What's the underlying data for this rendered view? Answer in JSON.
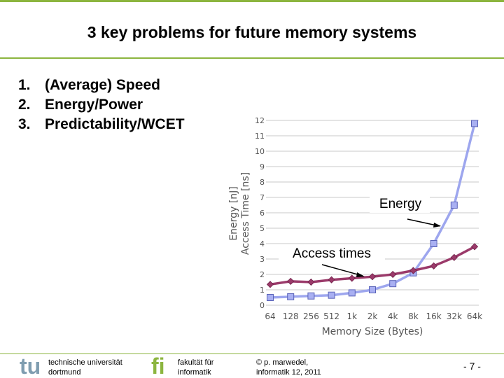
{
  "slide": {
    "title": "3 key problems for future memory systems",
    "items": [
      {
        "num": "1.",
        "text": "(Average) Speed"
      },
      {
        "num": "2.",
        "text": "Energy/Power"
      },
      {
        "num": "3.",
        "text": "Predictability/WCET"
      }
    ]
  },
  "chart_data": {
    "type": "line",
    "xlabel": "Memory Size (Bytes)",
    "ylabel_lines": [
      "Energy [nJ]",
      "Access Time [ns]"
    ],
    "categories": [
      "64",
      "128",
      "256",
      "512",
      "1k",
      "2k",
      "4k",
      "8k",
      "16k",
      "32k",
      "64k"
    ],
    "ylim": [
      0,
      12
    ],
    "yticks": [
      "0",
      "1",
      "2",
      "3",
      "4",
      "5",
      "6",
      "7",
      "8",
      "9",
      "10",
      "11",
      "12"
    ],
    "grid": true,
    "series": [
      {
        "values": [
          0.5,
          0.55,
          0.6,
          0.65,
          0.8,
          1.0,
          1.4,
          2.1,
          4.0,
          6.5,
          11.8
        ],
        "color": "#9da6ee",
        "marker": "square"
      },
      {
        "values": [
          1.35,
          1.55,
          1.5,
          1.65,
          1.75,
          1.85,
          2.0,
          2.25,
          2.55,
          3.1,
          3.8
        ],
        "color": "#9b3a6a",
        "marker": "diamond"
      }
    ],
    "annotations": [
      {
        "text": "Energy"
      },
      {
        "text": "Access times"
      }
    ]
  },
  "footer": {
    "tu_line1": "technische universität",
    "tu_line2": "dortmund",
    "fi_line1": "fakultät für",
    "fi_line2": "informatik",
    "copy_line1": "© p. marwedel,",
    "copy_line2": "informatik 12,  2011",
    "page": "-  7 -"
  },
  "colors": {
    "accent": "#8cb53f",
    "logo_blue": "#7f9db0"
  }
}
